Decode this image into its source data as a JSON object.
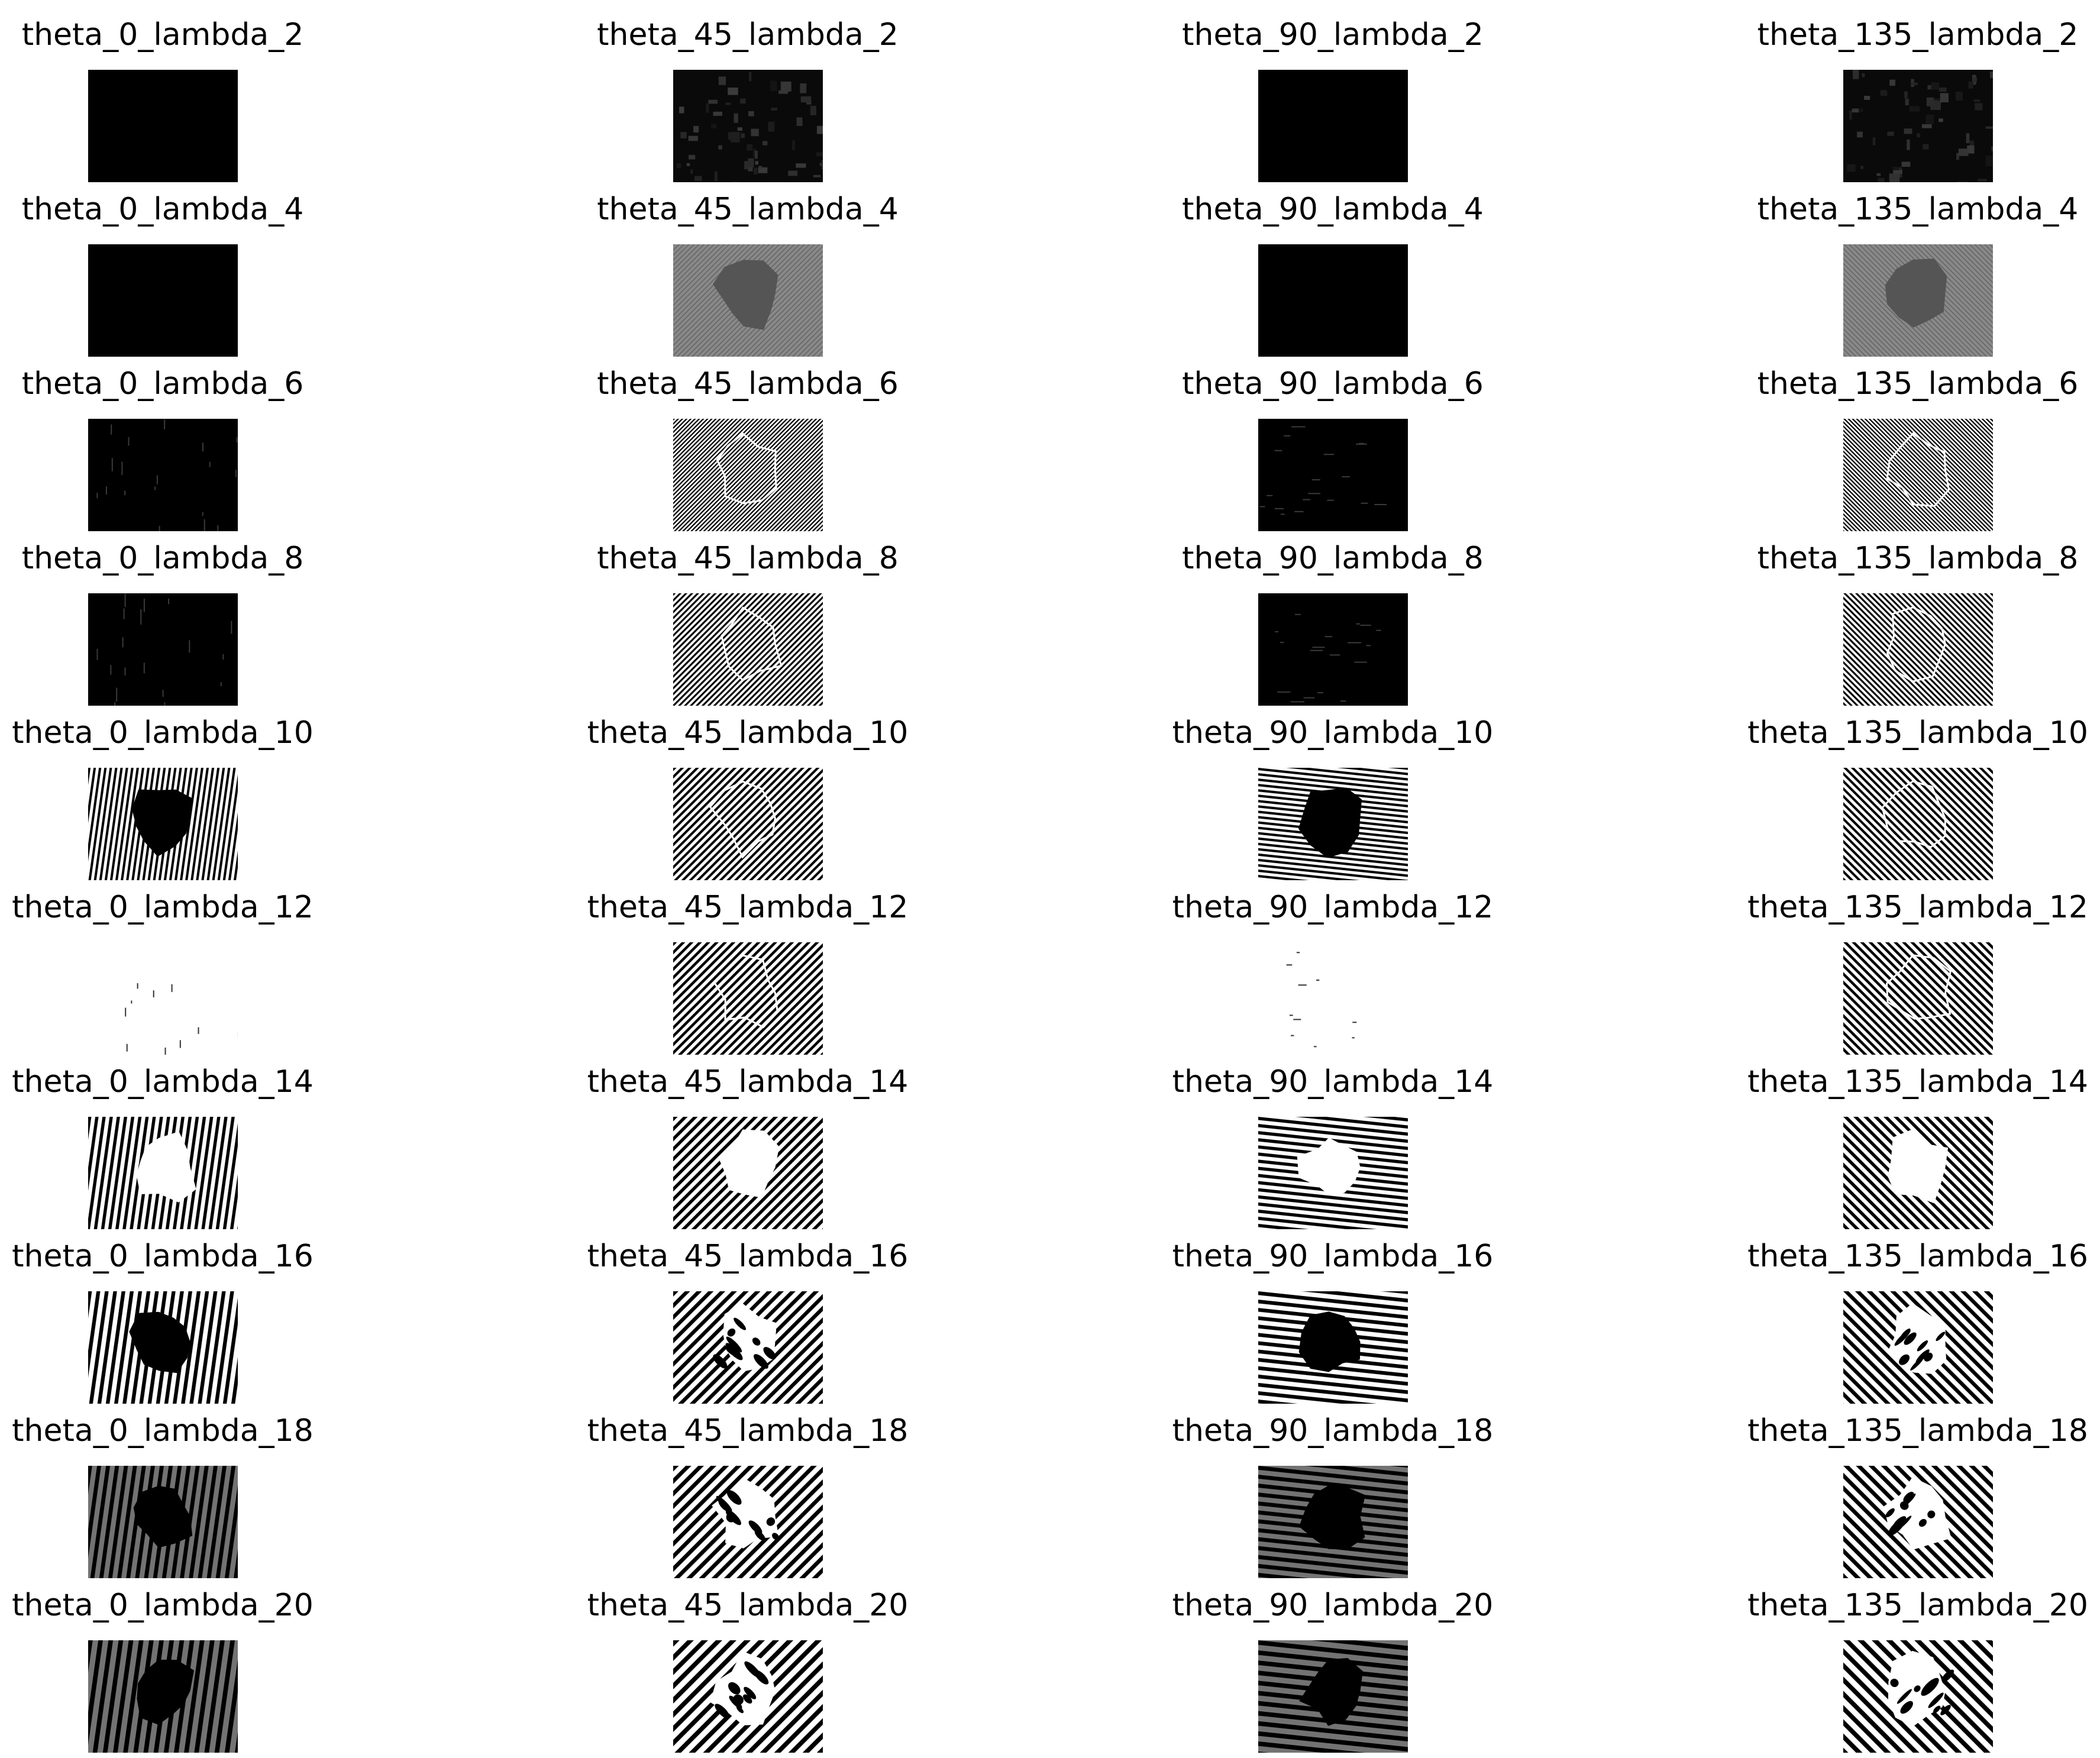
{
  "figure": {
    "columns": [
      {
        "theta": 0
      },
      {
        "theta": 45
      },
      {
        "theta": 90
      },
      {
        "theta": 135
      }
    ],
    "panels": [
      {
        "title": "theta_0_lambda_2",
        "theta": 0,
        "lambda": 2
      },
      {
        "title": "theta_45_lambda_2",
        "theta": 45,
        "lambda": 2
      },
      {
        "title": "theta_90_lambda_2",
        "theta": 90,
        "lambda": 2
      },
      {
        "title": "theta_135_lambda_2",
        "theta": 135,
        "lambda": 2
      },
      {
        "title": "theta_0_lambda_4",
        "theta": 0,
        "lambda": 4
      },
      {
        "title": "theta_45_lambda_4",
        "theta": 45,
        "lambda": 4
      },
      {
        "title": "theta_90_lambda_4",
        "theta": 90,
        "lambda": 4
      },
      {
        "title": "theta_135_lambda_4",
        "theta": 135,
        "lambda": 4
      },
      {
        "title": "theta_0_lambda_6",
        "theta": 0,
        "lambda": 6
      },
      {
        "title": "theta_45_lambda_6",
        "theta": 45,
        "lambda": 6
      },
      {
        "title": "theta_90_lambda_6",
        "theta": 90,
        "lambda": 6
      },
      {
        "title": "theta_135_lambda_6",
        "theta": 135,
        "lambda": 6
      },
      {
        "title": "theta_0_lambda_8",
        "theta": 0,
        "lambda": 8
      },
      {
        "title": "theta_45_lambda_8",
        "theta": 45,
        "lambda": 8
      },
      {
        "title": "theta_90_lambda_8",
        "theta": 90,
        "lambda": 8
      },
      {
        "title": "theta_135_lambda_8",
        "theta": 135,
        "lambda": 8
      },
      {
        "title": "theta_0_lambda_10",
        "theta": 0,
        "lambda": 10
      },
      {
        "title": "theta_45_lambda_10",
        "theta": 45,
        "lambda": 10
      },
      {
        "title": "theta_90_lambda_10",
        "theta": 90,
        "lambda": 10
      },
      {
        "title": "theta_135_lambda_10",
        "theta": 135,
        "lambda": 10
      },
      {
        "title": "theta_0_lambda_12",
        "theta": 0,
        "lambda": 12
      },
      {
        "title": "theta_45_lambda_12",
        "theta": 45,
        "lambda": 12
      },
      {
        "title": "theta_90_lambda_12",
        "theta": 90,
        "lambda": 12
      },
      {
        "title": "theta_135_lambda_12",
        "theta": 135,
        "lambda": 12
      },
      {
        "title": "theta_0_lambda_14",
        "theta": 0,
        "lambda": 14
      },
      {
        "title": "theta_45_lambda_14",
        "theta": 45,
        "lambda": 14
      },
      {
        "title": "theta_90_lambda_14",
        "theta": 90,
        "lambda": 14
      },
      {
        "title": "theta_135_lambda_14",
        "theta": 135,
        "lambda": 14
      },
      {
        "title": "theta_0_lambda_16",
        "theta": 0,
        "lambda": 16
      },
      {
        "title": "theta_45_lambda_16",
        "theta": 45,
        "lambda": 16
      },
      {
        "title": "theta_90_lambda_16",
        "theta": 90,
        "lambda": 16
      },
      {
        "title": "theta_135_lambda_16",
        "theta": 135,
        "lambda": 16
      },
      {
        "title": "theta_0_lambda_18",
        "theta": 0,
        "lambda": 18
      },
      {
        "title": "theta_45_lambda_18",
        "theta": 45,
        "lambda": 18
      },
      {
        "title": "theta_90_lambda_18",
        "theta": 90,
        "lambda": 18
      },
      {
        "title": "theta_135_lambda_18",
        "theta": 135,
        "lambda": 18
      },
      {
        "title": "theta_0_lambda_20",
        "theta": 0,
        "lambda": 20
      },
      {
        "title": "theta_45_lambda_20",
        "theta": 45,
        "lambda": 20
      },
      {
        "title": "theta_90_lambda_20",
        "theta": 90,
        "lambda": 20
      },
      {
        "title": "theta_135_lambda_20",
        "theta": 135,
        "lambda": 20
      }
    ]
  },
  "colors": {
    "background": "#ffffff",
    "ink": "#000000"
  }
}
